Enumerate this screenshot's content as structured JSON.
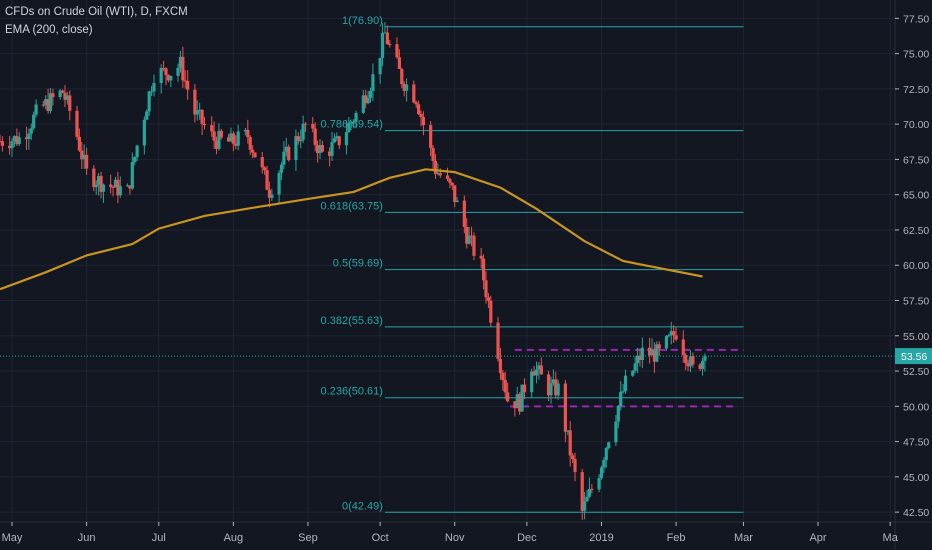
{
  "legend": {
    "symbol_line": "CFDs on Crude Oil (WTI), D, FXCM",
    "indicator_line": "EMA (200, close)"
  },
  "colors": {
    "background": "#131722",
    "grid": "#1f2433",
    "up": "#26a69a",
    "down": "#ef5350",
    "ema": "#c8961e",
    "fib": "#26a6a6",
    "resistance": "#9c27b0",
    "axis_text": "#b2b5be"
  },
  "chart_data": {
    "type": "candlestick",
    "title": "CFDs on Crude Oil (WTI), D, FXCM",
    "x_tick_labels": [
      "May",
      "Jun",
      "Jul",
      "Aug",
      "Sep",
      "Oct",
      "Nov",
      "Dec",
      "2019",
      "Feb",
      "Mar",
      "Apr",
      "Ma"
    ],
    "x_ticks": [
      "2018-05-01",
      "2018-06-01",
      "2018-07-01",
      "2018-08-01",
      "2018-09-01",
      "2018-10-01",
      "2018-11-01",
      "2018-12-01",
      "2019-01-01",
      "2019-02-01",
      "2019-03-01",
      "2019-04-01",
      "2019-05-01"
    ],
    "x_range": [
      "2018-04-26",
      "2019-05-03"
    ],
    "y_tick_labels": [
      "77.50",
      "75.00",
      "72.50",
      "70.00",
      "67.50",
      "65.00",
      "62.50",
      "60.00",
      "57.50",
      "55.00",
      "52.50",
      "50.00",
      "47.50",
      "45.00",
      "42.50"
    ],
    "ylim": [
      41.8,
      78.8
    ],
    "last_price": "53.56",
    "price_path": [
      [
        "2018-04-26",
        68.8
      ],
      [
        "2018-05-05",
        69.0
      ],
      [
        "2018-05-12",
        71.0
      ],
      [
        "2018-05-22",
        72.3
      ],
      [
        "2018-05-26",
        70.5
      ],
      [
        "2018-06-01",
        66.5
      ],
      [
        "2018-06-08",
        65.8
      ],
      [
        "2018-06-18",
        65.2
      ],
      [
        "2018-06-22",
        68.5
      ],
      [
        "2018-06-29",
        73.6
      ],
      [
        "2018-07-06",
        73.7
      ],
      [
        "2018-07-10",
        74.2
      ],
      [
        "2018-07-16",
        70.8
      ],
      [
        "2018-07-24",
        68.9
      ],
      [
        "2018-07-31",
        68.7
      ],
      [
        "2018-08-07",
        69.2
      ],
      [
        "2018-08-16",
        65.3
      ],
      [
        "2018-08-22",
        67.5
      ],
      [
        "2018-08-31",
        69.9
      ],
      [
        "2018-09-07",
        67.9
      ],
      [
        "2018-09-13",
        68.6
      ],
      [
        "2018-09-21",
        70.7
      ],
      [
        "2018-09-28",
        73.3
      ],
      [
        "2018-10-03",
        76.4
      ],
      [
        "2018-10-10",
        73.2
      ],
      [
        "2018-10-16",
        71.9
      ],
      [
        "2018-10-24",
        66.8
      ],
      [
        "2018-10-31",
        65.3
      ],
      [
        "2018-11-06",
        62.2
      ],
      [
        "2018-11-12",
        59.9
      ],
      [
        "2018-11-16",
        56.5
      ],
      [
        "2018-11-23",
        50.5
      ],
      [
        "2018-11-28",
        50.3
      ],
      [
        "2018-12-03",
        53.0
      ],
      [
        "2018-12-10",
        51.3
      ],
      [
        "2018-12-14",
        51.2
      ],
      [
        "2018-12-20",
        45.9
      ],
      [
        "2018-12-24",
        42.5
      ],
      [
        "2018-12-31",
        45.4
      ],
      [
        "2019-01-04",
        47.9
      ],
      [
        "2019-01-11",
        51.6
      ],
      [
        "2019-01-18",
        53.8
      ],
      [
        "2019-01-25",
        53.7
      ],
      [
        "2019-02-01",
        55.3
      ],
      [
        "2019-02-08",
        52.6
      ],
      [
        "2019-02-13",
        53.56
      ]
    ],
    "ema": {
      "name": "EMA (200, close)",
      "points": [
        [
          "2018-04-26",
          58.3
        ],
        [
          "2018-05-15",
          59.5
        ],
        [
          "2018-06-01",
          60.7
        ],
        [
          "2018-06-20",
          61.5
        ],
        [
          "2018-07-01",
          62.6
        ],
        [
          "2018-07-20",
          63.5
        ],
        [
          "2018-08-10",
          64.1
        ],
        [
          "2018-09-01",
          64.7
        ],
        [
          "2018-09-20",
          65.2
        ],
        [
          "2018-10-05",
          66.2
        ],
        [
          "2018-10-20",
          66.8
        ],
        [
          "2018-11-01",
          66.6
        ],
        [
          "2018-11-20",
          65.5
        ],
        [
          "2018-12-05",
          64.0
        ],
        [
          "2018-12-25",
          61.7
        ],
        [
          "2019-01-10",
          60.3
        ],
        [
          "2019-01-25",
          59.8
        ],
        [
          "2019-02-12",
          59.2
        ]
      ]
    },
    "fib_levels": [
      {
        "label": "1(76.90)",
        "value": 76.9
      },
      {
        "label": "0.786(69.54)",
        "value": 69.54
      },
      {
        "label": "0.618(63.75)",
        "value": 63.75
      },
      {
        "label": "0.5(59.69)",
        "value": 59.69
      },
      {
        "label": "0.382(55.63)",
        "value": 55.63
      },
      {
        "label": "0.236(50.61)",
        "value": 50.61
      },
      {
        "label": "0(42.49)",
        "value": 42.49
      }
    ],
    "fib_range": [
      "2018-10-03",
      "2019-03-01"
    ],
    "dashed_levels": [
      {
        "value": 54.0,
        "range": [
          "2018-11-26",
          "2019-03-01"
        ]
      },
      {
        "value": 50.0,
        "range": [
          "2018-11-24",
          "2019-02-26"
        ]
      }
    ]
  }
}
